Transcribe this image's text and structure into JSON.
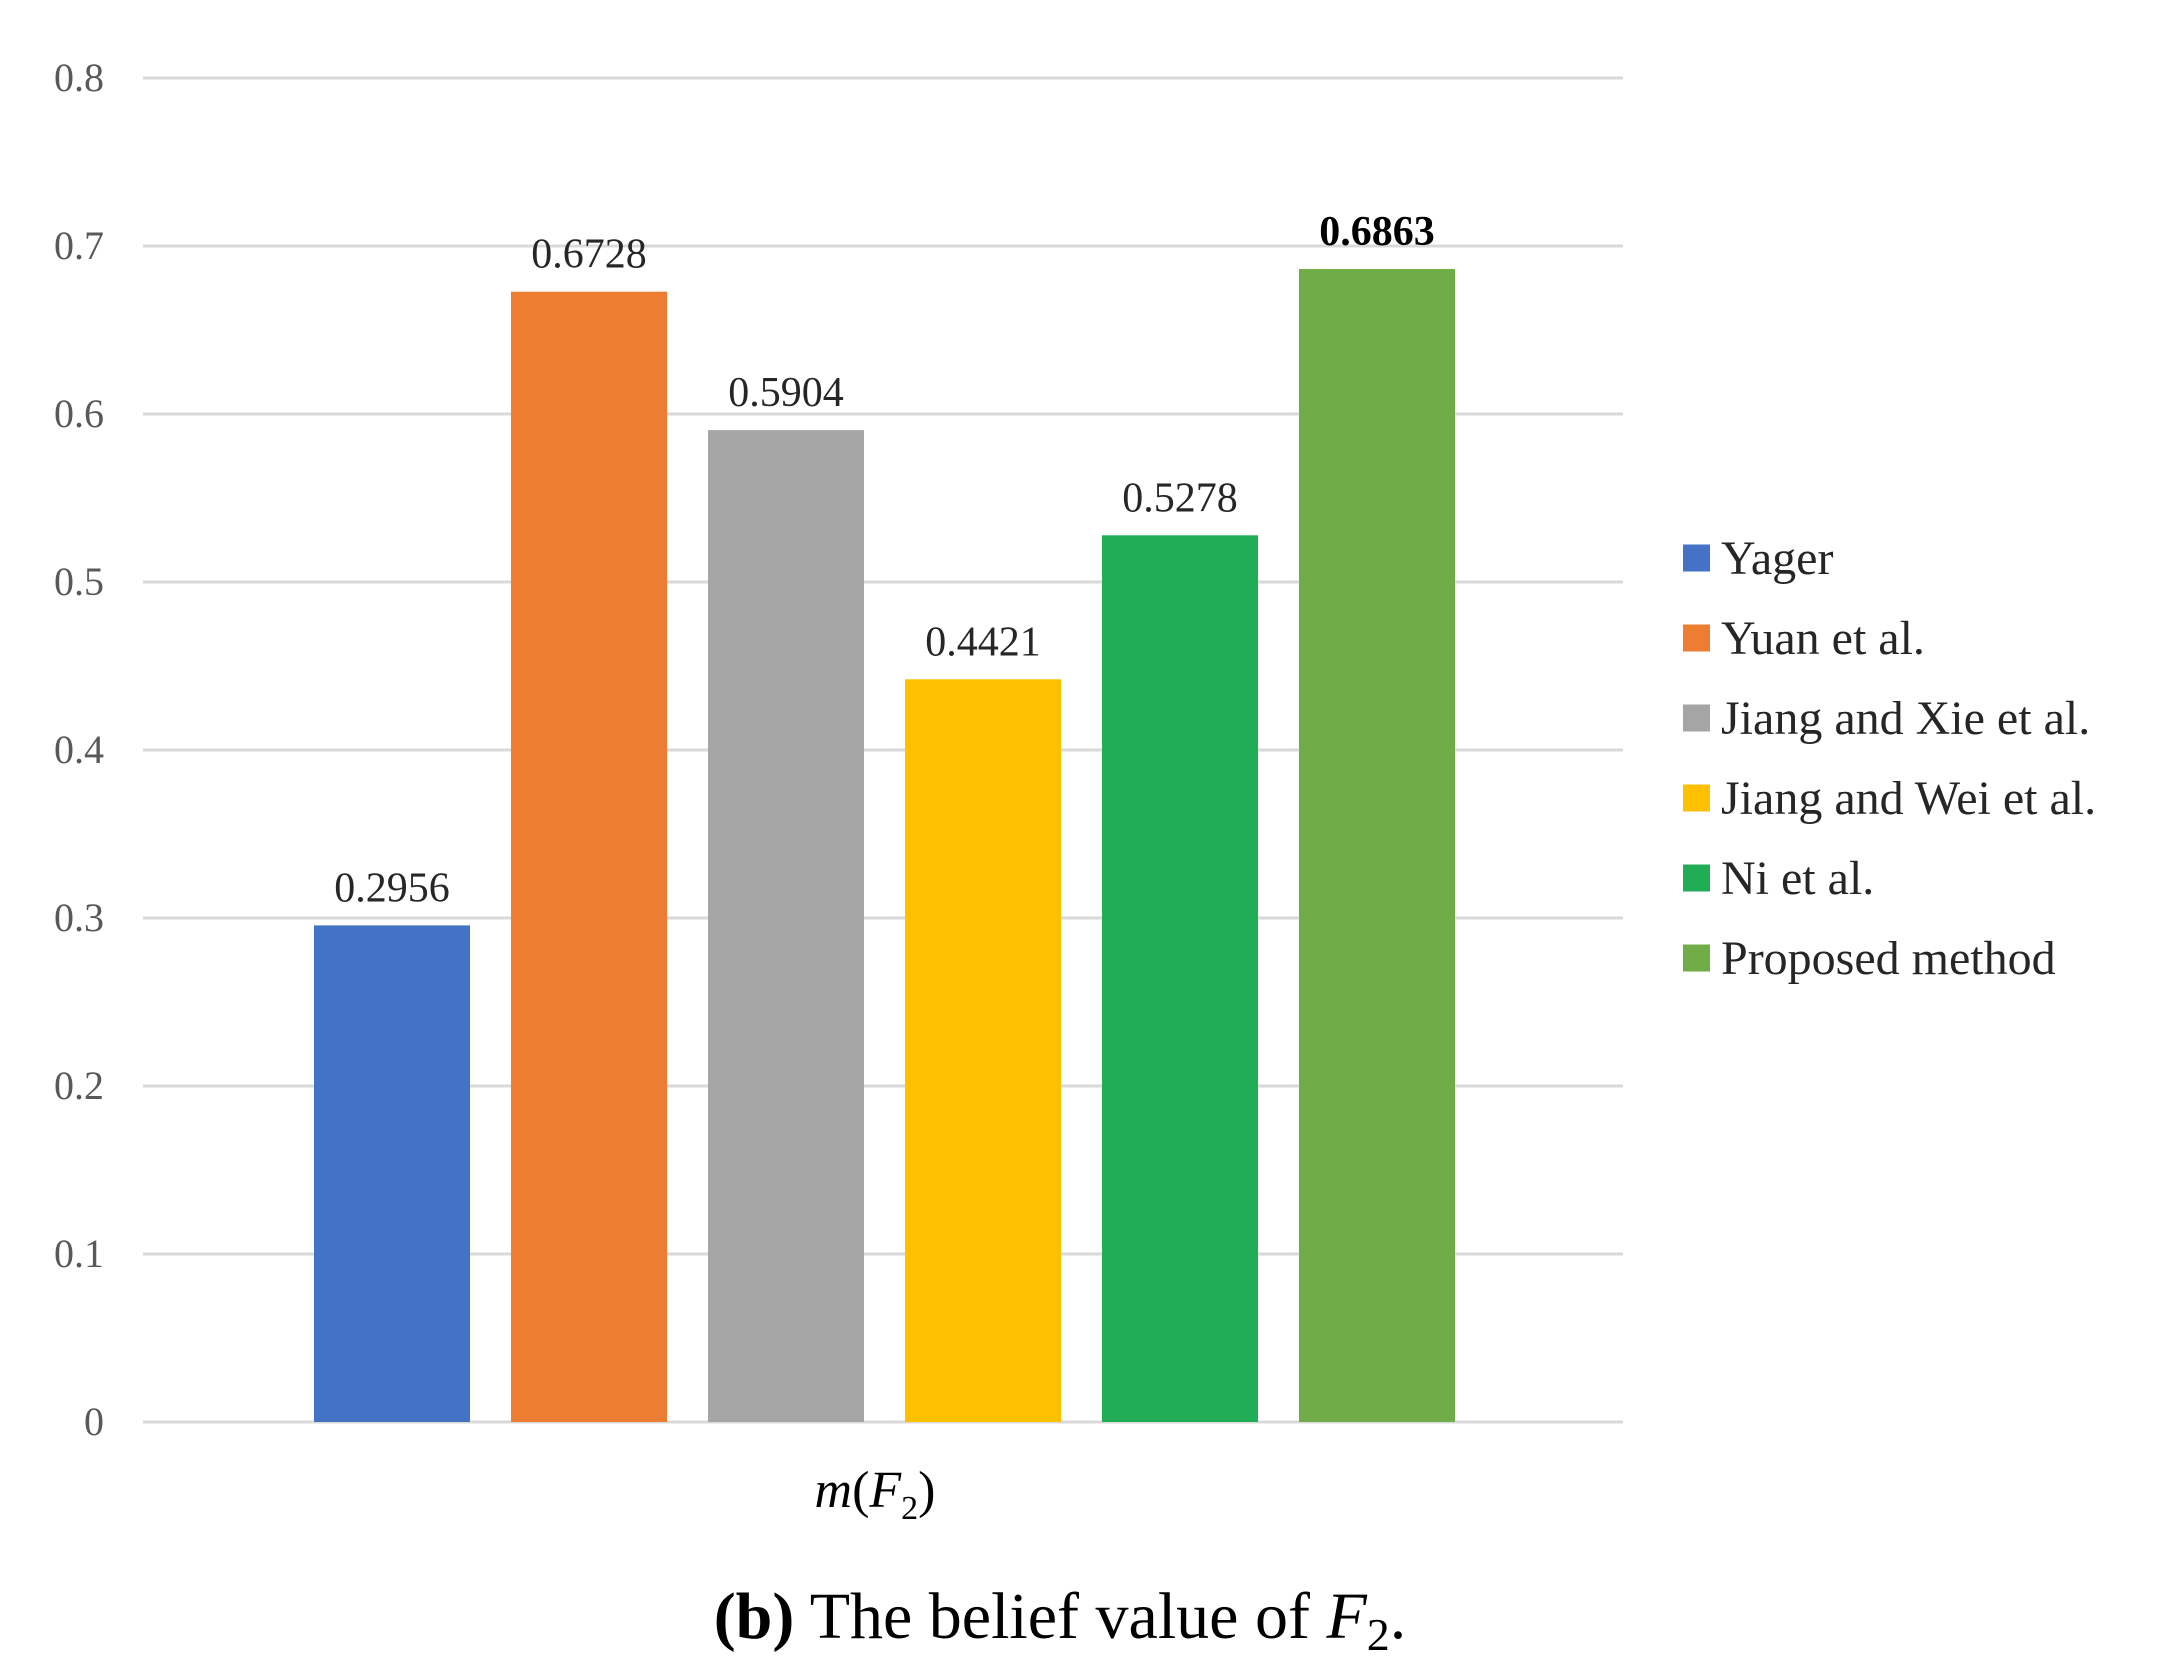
{
  "chart_data": {
    "type": "bar",
    "categories": [
      "m(F2)"
    ],
    "series": [
      {
        "name": "Yager",
        "values": [
          0.2956
        ],
        "label": "0.2956",
        "color": "#4472C4",
        "bold": false
      },
      {
        "name": "Yuan et al.",
        "values": [
          0.6728
        ],
        "label": "0.6728",
        "color": "#ED7D31",
        "bold": false
      },
      {
        "name": "Jiang and Xie et al.",
        "values": [
          0.5904
        ],
        "label": "0.5904",
        "color": "#A5A5A5",
        "bold": false
      },
      {
        "name": "Jiang and Wei et al.",
        "values": [
          0.4421
        ],
        "label": "0.4421",
        "color": "#FFC000",
        "bold": false
      },
      {
        "name": "Ni et al.",
        "values": [
          0.5278
        ],
        "label": "0.5278",
        "color": "#21AD55",
        "bold": false
      },
      {
        "name": "Proposed method",
        "values": [
          0.6863
        ],
        "label": "0.6863",
        "color": "#70AD47",
        "bold": true
      }
    ],
    "ylim": [
      0,
      0.8
    ],
    "yticks": [
      "0",
      "0.1",
      "0.2",
      "0.3",
      "0.4",
      "0.5",
      "0.6",
      "0.7",
      "0.8"
    ],
    "grid": true,
    "legend_position": "right",
    "xlabel": {
      "main": "m",
      "open": "(",
      "var": "F",
      "sub": "2",
      "close": ")"
    },
    "caption": {
      "tag": "(b)",
      "text": "The belief value of",
      "var": "F",
      "sub": "2",
      "end": "."
    }
  }
}
